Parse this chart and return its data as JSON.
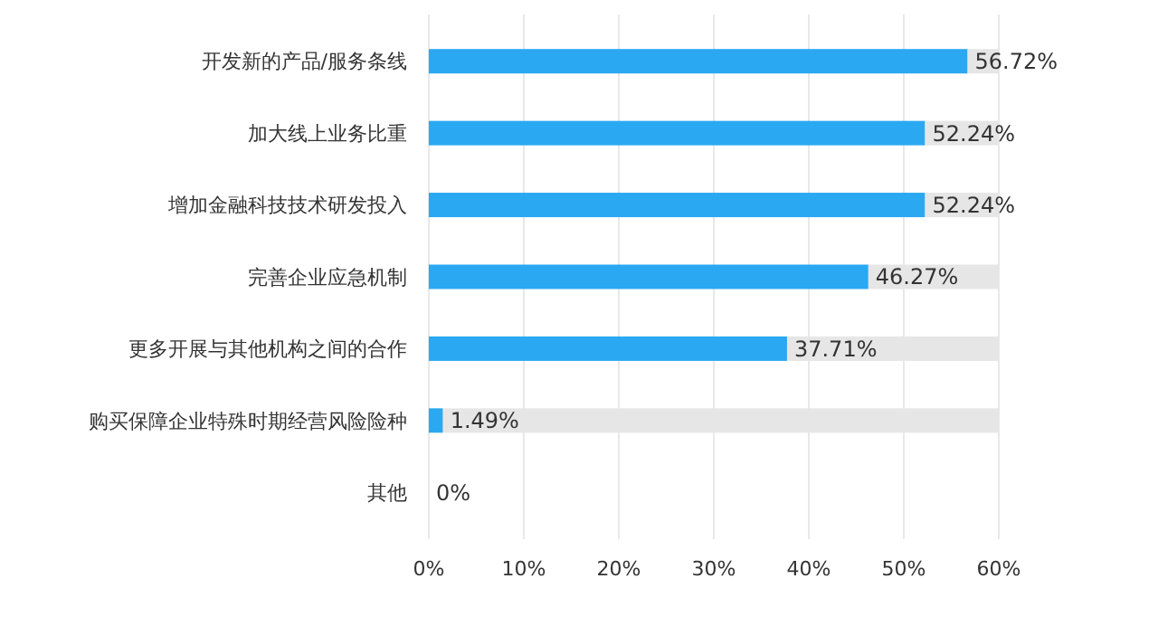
{
  "chart_data": {
    "type": "bar",
    "orientation": "horizontal",
    "stacked": true,
    "categories": [
      "开发新的产品/服务条线",
      "加大线上业务比重",
      "增加金融科技技术研发投入",
      "完善企业应急机制",
      "更多开展与其他机构之间的合作",
      "购买保障企业特殊时期经营风险险种",
      "其他"
    ],
    "series": [
      {
        "color": "#2aa8f2",
        "values": [
          56.72,
          52.24,
          52.24,
          46.27,
          37.71,
          1.49,
          0
        ],
        "value_labels": [
          "56.72%",
          "52.24%",
          "52.24%",
          "46.27%",
          "37.71%",
          "1.49%",
          "0%"
        ]
      },
      {
        "color": "#e6e6e6",
        "values": [
          3.28,
          7.76,
          7.76,
          13.73,
          22.29,
          58.51,
          null
        ]
      }
    ],
    "xlim": [
      0,
      60
    ],
    "xticks": [
      {
        "value": 0,
        "label": "0%"
      },
      {
        "value": 10,
        "label": "10%"
      },
      {
        "value": 20,
        "label": "20%"
      },
      {
        "value": 30,
        "label": "30%"
      },
      {
        "value": 40,
        "label": "40%"
      },
      {
        "value": 50,
        "label": "50%"
      },
      {
        "value": 60,
        "label": "60%"
      }
    ],
    "grid": "x"
  }
}
